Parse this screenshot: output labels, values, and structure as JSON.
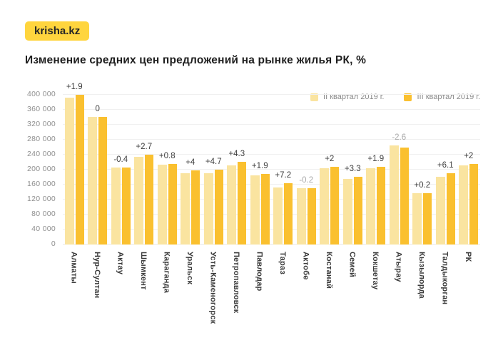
{
  "logo": {
    "text": "krisha.kz"
  },
  "title": "Изменение средних цен предложений на рынке жилья РК, %",
  "colors": {
    "logo_bg": "#FFD53E",
    "q2_bar": "#FAE4A0",
    "q3_bar": "#FAC02F",
    "point_label": "#3E3E3E",
    "point_label_muted": "#A9A9A9"
  },
  "legend": [
    {
      "label": "II квартал 2019 г."
    },
    {
      "label": "III квартал 2019 г."
    }
  ],
  "chart_data": {
    "type": "bar",
    "title": "Изменение средних цен предложений на рынке жилья РК, %",
    "categories": [
      "Алматы",
      "Нур-Султан",
      "Актау",
      "Шымкент",
      "Караганда",
      "Уральск",
      "Усть-Каменогорск",
      "Петропавловск",
      "Павлодар",
      "Тараз",
      "Актобе",
      "Костанай",
      "Семей",
      "Кокшетау",
      "Атырау",
      "Кызылорда",
      "Талдыкорган",
      "РК"
    ],
    "series": [
      {
        "name": "II квартал 2019 г.",
        "color": "#FAE4A0",
        "values": [
          392000,
          341000,
          206000,
          234000,
          212000,
          190000,
          190000,
          211000,
          185000,
          153000,
          150000,
          203000,
          175000,
          203000,
          265000,
          137000,
          180000,
          211000
        ]
      },
      {
        "name": "III квартал 2019 г.",
        "color": "#FAC02F",
        "values": [
          400000,
          341000,
          205000,
          240000,
          214000,
          198000,
          199000,
          220000,
          188000,
          164000,
          150000,
          207000,
          181000,
          207000,
          258000,
          137000,
          191000,
          215000
        ]
      }
    ],
    "point_labels": [
      "+1.9",
      "0",
      "-0.4",
      "+2.7",
      "+0.8",
      "+4",
      "+4.7",
      "+4.3",
      "+1.9",
      "+7.2",
      "-0.2",
      "+2",
      "+3.3",
      "+1.9",
      "-2.6",
      "+0.2",
      "+6.1",
      "+2"
    ],
    "muted_label_indexes": [
      10,
      14
    ],
    "ylim": [
      0,
      420000
    ],
    "yticks": [
      0,
      40000,
      80000,
      120000,
      160000,
      200000,
      240000,
      280000,
      320000,
      360000,
      400000
    ],
    "ytick_labels": [
      "0",
      "40 000",
      "80 000",
      "120 000",
      "160 000",
      "200 000",
      "240 000",
      "280 000",
      "320 000",
      "360 000",
      "400 000"
    ],
    "grid": true,
    "legend_position": "top-right"
  }
}
